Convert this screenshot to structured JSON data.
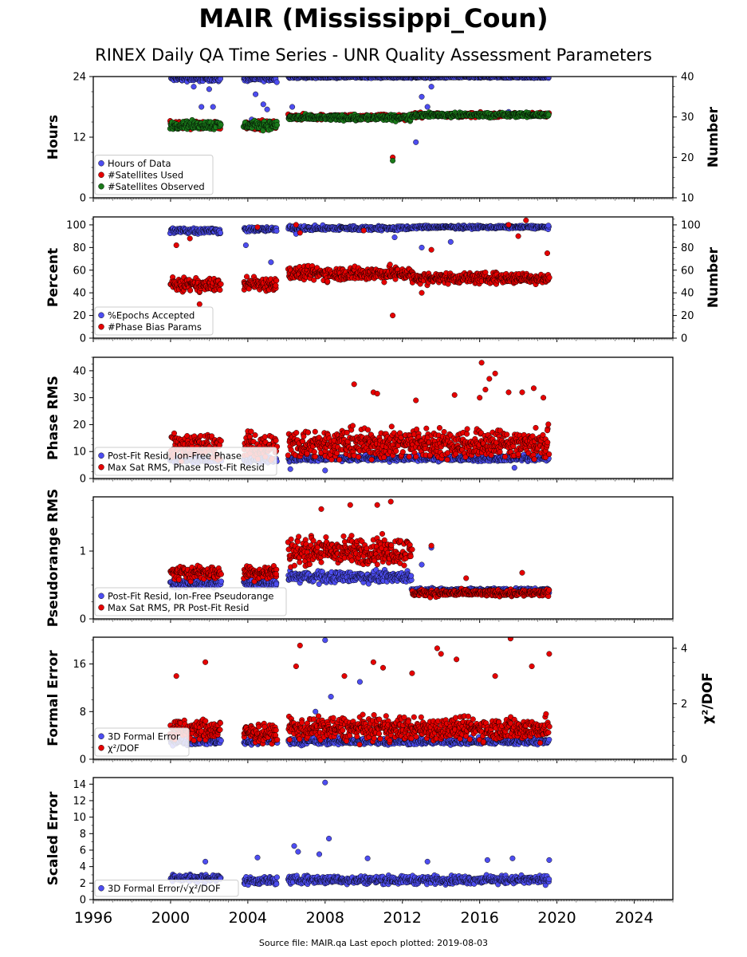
{
  "title": "MAIR (Mississippi_Coun)",
  "subtitle": "RINEX Daily QA Time Series - UNR Quality Assessment Parameters",
  "footer": "Source file: MAIR.qa Last epoch plotted: 2019-08-03",
  "colors": {
    "blue": "#4d4df0",
    "red": "#e60000",
    "green": "#1a7a1a"
  },
  "chart_data": [
    {
      "type": "scatter",
      "x_axis": {
        "range": [
          1996,
          2026
        ],
        "tick_labels": [
          "1996",
          "2000",
          "2004",
          "2008",
          "2012",
          "2016",
          "2020",
          "2024"
        ]
      },
      "ylabel": "Hours",
      "ylim": [
        0,
        24
      ],
      "yticks": [
        "0",
        "12",
        "24"
      ],
      "right_ylabel": "Number",
      "right_ylim": [
        10,
        40
      ],
      "right_yticks": [
        "10",
        "20",
        "30",
        "40"
      ],
      "legend": [
        "Hours of Data",
        "#Satellites Used",
        "#Satellites Observed"
      ],
      "series": [
        {
          "name": "Hours of Data",
          "color": "blue",
          "axis": "left",
          "segments": [
            {
              "x": [
                2000.0,
                2002.6
              ],
              "level": 23.6,
              "spread": 0.8
            },
            {
              "x": [
                2003.8,
                2005.5
              ],
              "level": 23.6,
              "spread": 0.8
            },
            {
              "x": [
                2006.1,
                2019.6
              ],
              "level": 23.9,
              "spread": 0.3
            }
          ],
          "outliers": [
            [
              2001.2,
              22.0
            ],
            [
              2002.0,
              21.5
            ],
            [
              2001.6,
              18.0
            ],
            [
              2002.2,
              18.0
            ],
            [
              2004.4,
              20.5
            ],
            [
              2004.8,
              18.5
            ],
            [
              2005.0,
              17.5
            ],
            [
              2004.2,
              15.5
            ],
            [
              2006.3,
              18.0
            ],
            [
              2013.0,
              20.0
            ],
            [
              2013.3,
              18.0
            ],
            [
              2012.7,
              11.0
            ],
            [
              2013.5,
              22.0
            ],
            [
              2017.5,
              17.0
            ]
          ]
        },
        {
          "name": "#Satellites Used",
          "color": "red",
          "axis": "right",
          "segments": [
            {
              "x": [
                2000.0,
                2002.6
              ],
              "level": 28.0,
              "spread": 1.5
            },
            {
              "x": [
                2003.8,
                2005.5
              ],
              "level": 28.0,
              "spread": 1.5
            },
            {
              "x": [
                2006.1,
                2012.5
              ],
              "level": 30.0,
              "spread": 1.0
            },
            {
              "x": [
                2012.5,
                2019.6
              ],
              "level": 30.5,
              "spread": 0.8
            }
          ],
          "outliers": [
            [
              2011.5,
              20.0
            ]
          ]
        },
        {
          "name": "#Satellites Observed",
          "color": "green",
          "axis": "right",
          "segments": [
            {
              "x": [
                2000.0,
                2002.6
              ],
              "level": 28.0,
              "spread": 1.5
            },
            {
              "x": [
                2003.8,
                2005.5
              ],
              "level": 28.0,
              "spread": 1.5
            },
            {
              "x": [
                2006.1,
                2012.5
              ],
              "level": 29.8,
              "spread": 1.0
            },
            {
              "x": [
                2012.5,
                2019.6
              ],
              "level": 30.5,
              "spread": 0.8
            }
          ],
          "outliers": [
            [
              2011.5,
              19.2
            ]
          ]
        }
      ]
    },
    {
      "type": "scatter",
      "x_axis": {
        "range": [
          1996,
          2026
        ]
      },
      "ylabel": "Percent",
      "ylim": [
        0,
        107
      ],
      "yticks": [
        "0",
        "20",
        "40",
        "60",
        "80",
        "100"
      ],
      "right_ylabel": "Number",
      "right_ylim": [
        0,
        107
      ],
      "right_yticks": [
        "0",
        "20",
        "40",
        "60",
        "80",
        "100"
      ],
      "legend": [
        "%Epochs Accepted",
        "#Phase Bias Params"
      ],
      "series": [
        {
          "name": "%Epochs Accepted",
          "color": "blue",
          "axis": "left",
          "segments": [
            {
              "x": [
                2000.0,
                2002.6
              ],
              "level": 95.0,
              "spread": 4.0
            },
            {
              "x": [
                2003.8,
                2005.5
              ],
              "level": 96.0,
              "spread": 3.0
            },
            {
              "x": [
                2006.1,
                2012.5
              ],
              "level": 97.0,
              "spread": 3.0
            },
            {
              "x": [
                2012.5,
                2019.6
              ],
              "level": 98.0,
              "spread": 2.0
            }
          ],
          "outliers": [
            [
              2003.9,
              82.0
            ],
            [
              2005.2,
              67.0
            ],
            [
              2006.5,
              92.0
            ],
            [
              2011.6,
              89.0
            ],
            [
              2013.0,
              80.0
            ],
            [
              2014.5,
              85.0
            ]
          ]
        },
        {
          "name": "#Phase Bias Params",
          "color": "red",
          "axis": "right",
          "segments": [
            {
              "x": [
                2000.0,
                2002.6
              ],
              "level": 47.0,
              "spread": 8.0
            },
            {
              "x": [
                2003.8,
                2005.5
              ],
              "level": 48.0,
              "spread": 9.0
            },
            {
              "x": [
                2006.1,
                2012.5
              ],
              "level": 57.0,
              "spread": 9.0
            },
            {
              "x": [
                2012.5,
                2019.6
              ],
              "level": 53.0,
              "spread": 7.0
            }
          ],
          "outliers": [
            [
              2001.5,
              30.0
            ],
            [
              2004.5,
              98.0
            ],
            [
              2006.5,
              100.0
            ],
            [
              2006.7,
              93.0
            ],
            [
              2011.5,
              20.0
            ],
            [
              2010.0,
              95.0
            ],
            [
              2013.5,
              78.0
            ],
            [
              2017.5,
              100.0
            ],
            [
              2018.4,
              104.0
            ],
            [
              2018.0,
              90.0
            ],
            [
              2000.3,
              82.0
            ],
            [
              2001.0,
              88.0
            ],
            [
              2013.0,
              40.0
            ],
            [
              2019.5,
              75.0
            ]
          ]
        }
      ]
    },
    {
      "type": "scatter",
      "x_axis": {
        "range": [
          1996,
          2026
        ]
      },
      "ylabel": "Phase RMS",
      "ylim": [
        0,
        45
      ],
      "yticks": [
        "0",
        "10",
        "20",
        "30",
        "40"
      ],
      "legend": [
        "Post-Fit Resid, Ion-Free Phase",
        "Max Sat RMS, Phase Post-Fit Resid"
      ],
      "series": [
        {
          "name": "Post-Fit Resid, Ion-Free Phase",
          "color": "blue",
          "axis": "left",
          "segments": [
            {
              "x": [
                2000.0,
                2002.6
              ],
              "level": 7.0,
              "spread": 1.5
            },
            {
              "x": [
                2003.8,
                2005.5
              ],
              "level": 7.0,
              "spread": 1.5
            },
            {
              "x": [
                2006.1,
                2019.6
              ],
              "level": 7.5,
              "spread": 1.5
            }
          ],
          "outliers": [
            [
              2008.0,
              3.0
            ],
            [
              2006.2,
              3.5
            ],
            [
              2017.8,
              4.0
            ]
          ]
        },
        {
          "name": "Max Sat RMS, Phase Post-Fit Resid",
          "color": "red",
          "axis": "left",
          "segments": [
            {
              "x": [
                2000.0,
                2002.6
              ],
              "level": 12.0,
              "spread": 7.0
            },
            {
              "x": [
                2003.8,
                2005.5
              ],
              "level": 12.0,
              "spread": 7.0
            },
            {
              "x": [
                2006.1,
                2019.6
              ],
              "level": 13.0,
              "spread": 8.0
            }
          ],
          "outliers": [
            [
              2016.1,
              43.0
            ],
            [
              2016.5,
              37.0
            ],
            [
              2016.8,
              39.0
            ],
            [
              2016.3,
              33.0
            ],
            [
              2009.5,
              35.0
            ],
            [
              2010.5,
              32.0
            ],
            [
              2010.7,
              31.5
            ],
            [
              2014.7,
              31.0
            ],
            [
              2017.5,
              32.0
            ],
            [
              2018.2,
              32.0
            ],
            [
              2018.8,
              33.5
            ],
            [
              2019.3,
              30.0
            ],
            [
              2016.0,
              30.0
            ],
            [
              2012.7,
              29.0
            ]
          ]
        }
      ]
    },
    {
      "type": "scatter",
      "x_axis": {
        "range": [
          1996,
          2026
        ]
      },
      "ylabel": "Pseudorange RMS",
      "ylim": [
        0,
        1.8
      ],
      "yticks": [
        "0",
        "1"
      ],
      "legend": [
        "Post-Fit Resid, Ion-Free Pseudorange",
        "Max Sat RMS, PR Post-Fit Resid"
      ],
      "series": [
        {
          "name": "Post-Fit Resid, Ion-Free Pseudorange",
          "color": "blue",
          "axis": "left",
          "segments": [
            {
              "x": [
                2000.0,
                2002.6
              ],
              "level": 0.52,
              "spread": 0.08
            },
            {
              "x": [
                2003.8,
                2005.5
              ],
              "level": 0.52,
              "spread": 0.08
            },
            {
              "x": [
                2006.1,
                2012.5
              ],
              "level": 0.62,
              "spread": 0.12
            },
            {
              "x": [
                2012.5,
                2019.6
              ],
              "level": 0.42,
              "spread": 0.05
            }
          ],
          "outliers": [
            [
              2013.5,
              1.05
            ],
            [
              2013.0,
              0.8
            ]
          ]
        },
        {
          "name": "Max Sat RMS, PR Post-Fit Resid",
          "color": "red",
          "axis": "left",
          "segments": [
            {
              "x": [
                2000.0,
                2002.6
              ],
              "level": 0.68,
              "spread": 0.15
            },
            {
              "x": [
                2003.8,
                2005.5
              ],
              "level": 0.68,
              "spread": 0.15
            },
            {
              "x": [
                2006.1,
                2012.5
              ],
              "level": 1.0,
              "spread": 0.3
            },
            {
              "x": [
                2012.5,
                2019.6
              ],
              "level": 0.38,
              "spread": 0.07
            }
          ],
          "outliers": [
            [
              2011.4,
              1.73
            ],
            [
              2010.7,
              1.68
            ],
            [
              2009.3,
              1.68
            ],
            [
              2007.8,
              1.62
            ],
            [
              2013.5,
              1.08
            ],
            [
              2015.3,
              0.6
            ],
            [
              2018.2,
              0.68
            ]
          ]
        }
      ]
    },
    {
      "type": "scatter",
      "x_axis": {
        "range": [
          1996,
          2026
        ]
      },
      "ylabel": "Formal Error",
      "ylim": [
        0,
        20.5
      ],
      "yticks": [
        "0",
        "8",
        "16"
      ],
      "right_ylabel": "χ²/DOF",
      "right_ylim": [
        0,
        4.4
      ],
      "right_yticks": [
        "0",
        "2",
        "4"
      ],
      "legend": [
        "3D Formal Error",
        "χ²/DOF"
      ],
      "series": [
        {
          "name": "3D Formal Error",
          "color": "blue",
          "axis": "left",
          "segments": [
            {
              "x": [
                2000.0,
                2002.6
              ],
              "level": 3.0,
              "spread": 0.8
            },
            {
              "x": [
                2003.8,
                2005.5
              ],
              "level": 3.0,
              "spread": 0.8
            },
            {
              "x": [
                2006.1,
                2019.6
              ],
              "level": 3.0,
              "spread": 0.8
            }
          ],
          "outliers": [
            [
              2008.0,
              20.0
            ],
            [
              2009.8,
              13.0
            ],
            [
              2008.3,
              10.5
            ],
            [
              2007.5,
              8.0
            ]
          ]
        },
        {
          "name": "χ²/DOF",
          "color": "red",
          "axis": "right",
          "segments": [
            {
              "x": [
                2000.0,
                2002.6
              ],
              "level": 1.05,
              "spread": 0.55
            },
            {
              "x": [
                2003.8,
                2005.5
              ],
              "level": 0.95,
              "spread": 0.45
            },
            {
              "x": [
                2006.1,
                2019.6
              ],
              "level": 1.1,
              "spread": 0.6
            }
          ],
          "outliers": [
            [
              2006.7,
              4.1
            ],
            [
              2017.6,
              4.35
            ],
            [
              2001.8,
              3.5
            ],
            [
              2000.3,
              3.0
            ],
            [
              2006.5,
              3.35
            ],
            [
              2010.5,
              3.5
            ],
            [
              2011.0,
              3.3
            ],
            [
              2013.8,
              4.0
            ],
            [
              2014.0,
              3.8
            ],
            [
              2014.8,
              3.6
            ],
            [
              2018.7,
              3.35
            ],
            [
              2019.6,
              3.8
            ],
            [
              2012.5,
              3.1
            ],
            [
              2016.8,
              3.0
            ],
            [
              2009.0,
              3.0
            ]
          ]
        }
      ]
    },
    {
      "type": "scatter",
      "x_axis": {
        "range": [
          1996,
          2026
        ]
      },
      "ylabel": "Scaled Error",
      "ylim": [
        0,
        14.8
      ],
      "yticks": [
        "0",
        "2",
        "4",
        "6",
        "8",
        "10",
        "12",
        "14"
      ],
      "legend": [
        "3D Formal Error/√χ²/DOF"
      ],
      "series": [
        {
          "name": "3D Formal Error/√χ²/DOF",
          "color": "blue",
          "axis": "left",
          "segments": [
            {
              "x": [
                2000.0,
                2002.6
              ],
              "level": 2.6,
              "spread": 0.7
            },
            {
              "x": [
                2003.8,
                2005.5
              ],
              "level": 2.3,
              "spread": 0.7
            },
            {
              "x": [
                2006.1,
                2019.6
              ],
              "level": 2.4,
              "spread": 0.7
            }
          ],
          "outliers": [
            [
              2008.0,
              14.2
            ],
            [
              2008.2,
              7.4
            ],
            [
              2006.4,
              6.5
            ],
            [
              2006.6,
              5.8
            ],
            [
              2004.5,
              5.1
            ],
            [
              2001.8,
              4.6
            ],
            [
              2007.7,
              5.5
            ],
            [
              2010.2,
              5.0
            ],
            [
              2016.4,
              4.8
            ],
            [
              2017.7,
              5.0
            ],
            [
              2019.6,
              4.8
            ],
            [
              2013.3,
              4.6
            ]
          ]
        }
      ]
    }
  ]
}
